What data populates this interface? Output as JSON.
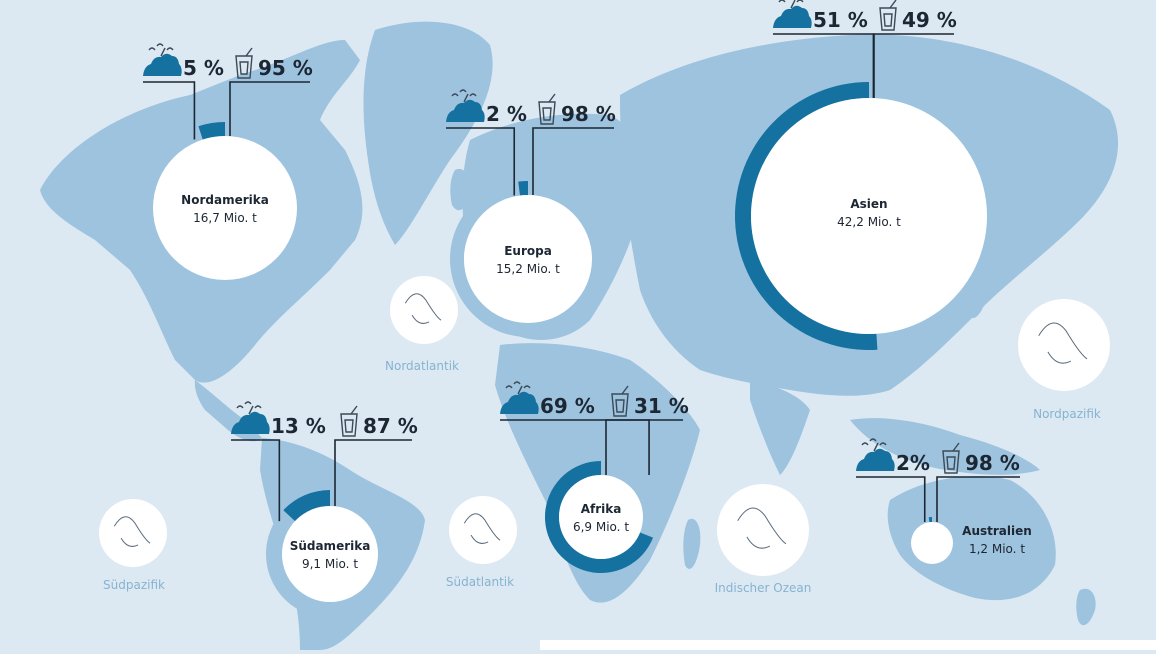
{
  "chart_data": {
    "type": "donut-map",
    "colors": {
      "ocean": "#dde9f2",
      "land": "#9dc3df",
      "landfill_segment": "#1571a0",
      "other_segment": "#9dc3df",
      "center": "#ffffff",
      "text": "#1d2733",
      "ocean_label": "#86b3d1"
    },
    "icons": {
      "first_share": "landfill-pile-icon",
      "second_share": "trash-bin-icon"
    },
    "regions": [
      {
        "name": "Nordamerika",
        "amount": "16,7 Mio. t",
        "value": 16.7,
        "share_a": 5,
        "share_b": 95,
        "label_a": "5 %",
        "label_b": "95 %"
      },
      {
        "name": "Europa",
        "amount": "15,2 Mio. t",
        "value": 15.2,
        "share_a": 2,
        "share_b": 98,
        "label_a": "2 %",
        "label_b": "98 %"
      },
      {
        "name": "Asien",
        "amount": "42,2 Mio. t",
        "value": 42.2,
        "share_a": 51,
        "share_b": 49,
        "label_a": "51 %",
        "label_b": "49 %"
      },
      {
        "name": "Südamerika",
        "amount": "9,1 Mio. t",
        "value": 9.1,
        "share_a": 13,
        "share_b": 87,
        "label_a": "13 %",
        "label_b": "87 %"
      },
      {
        "name": "Afrika",
        "amount": "6,9 Mio. t",
        "value": 6.9,
        "share_a": 69,
        "share_b": 31,
        "label_a": "69 %",
        "label_b": "31 %"
      },
      {
        "name": "Australien",
        "amount": "1,2 Mio. t",
        "value": 1.2,
        "share_a": 2,
        "share_b": 98,
        "label_a": "2%",
        "label_b": "98 %"
      }
    ],
    "oceans": [
      "Nordatlantik",
      "Südatlantik",
      "Indischer Ozean",
      "Nordpazifik",
      "Südpazifik"
    ]
  }
}
